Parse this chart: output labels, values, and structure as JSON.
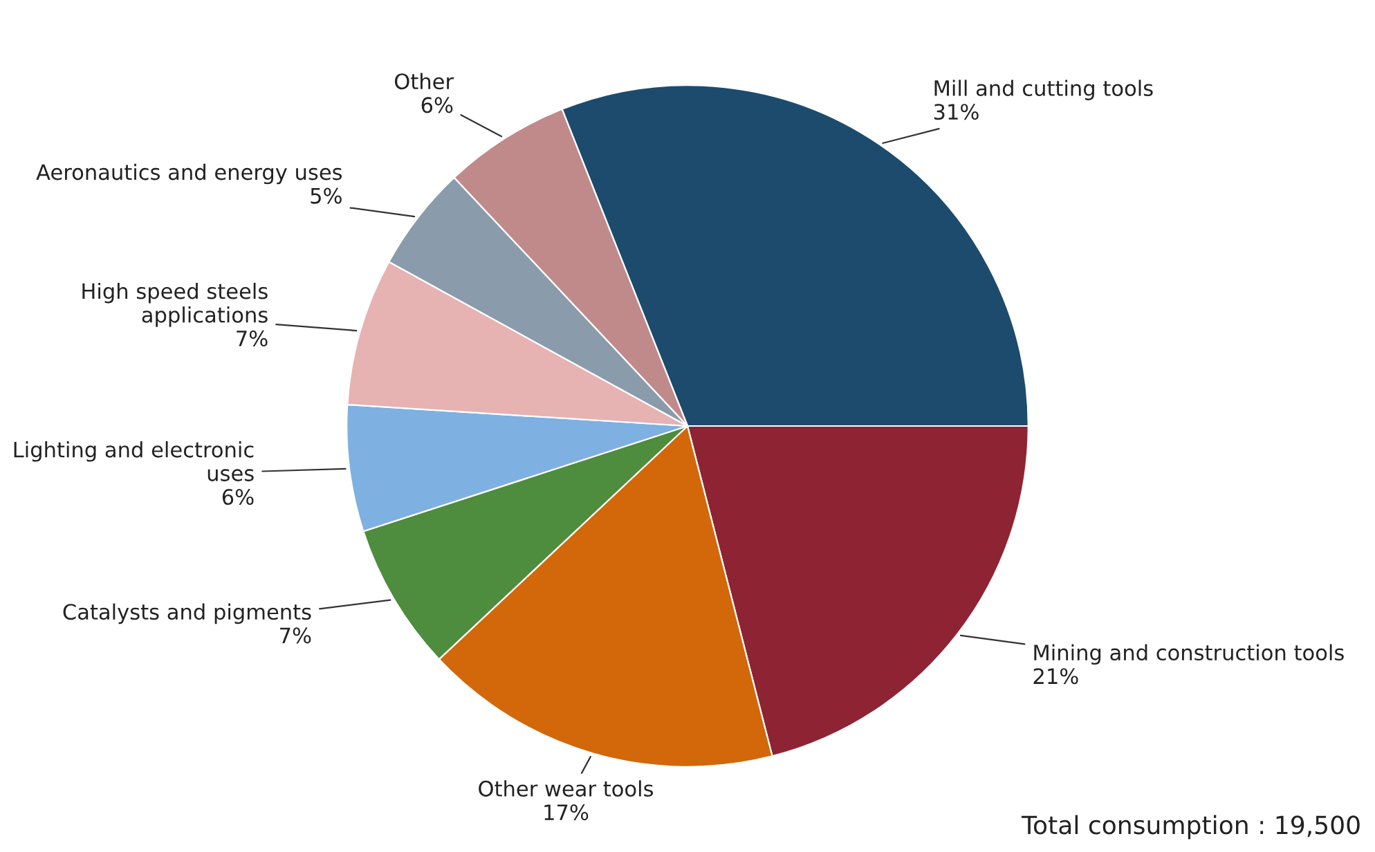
{
  "chart_data": {
    "type": "pie",
    "categories": [
      "Mill and cutting tools",
      "Mining and construction tools",
      "Other wear tools",
      "Catalysts and pigments",
      "Lighting and electronic uses",
      "High speed steels applications",
      "Aeronautics and energy uses",
      "Other"
    ],
    "values": [
      31,
      21,
      17,
      7,
      6,
      7,
      5,
      6
    ],
    "colors": [
      "#1c4b6e",
      "#8e2433",
      "#d2680a",
      "#4e8c3e",
      "#7eb0e2",
      "#e6b2b2",
      "#8a9bab",
      "#c08a8a"
    ],
    "value_labels": [
      "31%",
      "21%",
      "17%",
      "7%",
      "6%",
      "7%",
      "5%",
      "6%"
    ],
    "annotations": [
      "Total consumption : 19,500"
    ]
  }
}
